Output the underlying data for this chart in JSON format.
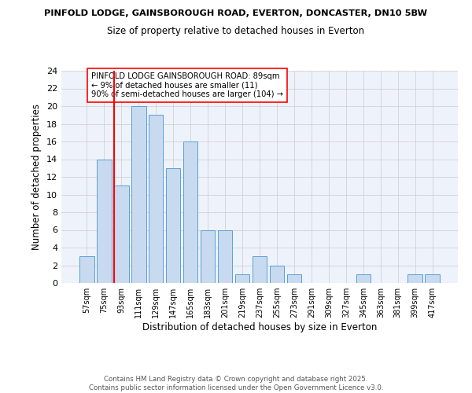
{
  "title1": "PINFOLD LODGE, GAINSBOROUGH ROAD, EVERTON, DONCASTER, DN10 5BW",
  "title2": "Size of property relative to detached houses in Everton",
  "xlabel": "Distribution of detached houses by size in Everton",
  "ylabel": "Number of detached properties",
  "bar_labels": [
    "57sqm",
    "75sqm",
    "93sqm",
    "111sqm",
    "129sqm",
    "147sqm",
    "165sqm",
    "183sqm",
    "201sqm",
    "219sqm",
    "237sqm",
    "255sqm",
    "273sqm",
    "291sqm",
    "309sqm",
    "327sqm",
    "345sqm",
    "363sqm",
    "381sqm",
    "399sqm",
    "417sqm"
  ],
  "bar_values": [
    3,
    14,
    11,
    20,
    19,
    13,
    16,
    6,
    6,
    1,
    3,
    2,
    1,
    0,
    0,
    0,
    1,
    0,
    0,
    1,
    1
  ],
  "bar_color": "#c8daf0",
  "bar_edge_color": "#5a9fd4",
  "grid_color": "#cccccc",
  "background_color": "#ffffff",
  "plot_bg_color": "#eef2fa",
  "red_line_index": 2,
  "annotation_text": "PINFOLD LODGE GAINSBOROUGH ROAD: 89sqm\n← 9% of detached houses are smaller (11)\n90% of semi-detached houses are larger (104) →",
  "ylim": [
    0,
    24
  ],
  "yticks": [
    0,
    2,
    4,
    6,
    8,
    10,
    12,
    14,
    16,
    18,
    20,
    22,
    24
  ],
  "footer": "Contains HM Land Registry data © Crown copyright and database right 2025.\nContains public sector information licensed under the Open Government Licence v3.0."
}
